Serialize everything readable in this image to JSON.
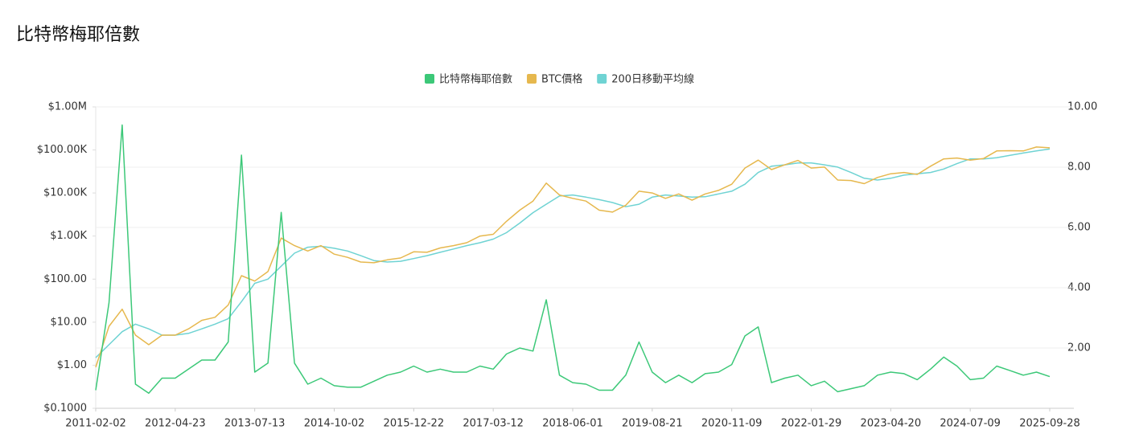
{
  "chart_data": {
    "type": "line",
    "title": "比特幣梅耶倍數",
    "categories": [
      "2011-02-02",
      null,
      null,
      null,
      null,
      null,
      "2012-04-23",
      null,
      null,
      null,
      null,
      null,
      "2013-07-13",
      null,
      null,
      null,
      null,
      null,
      "2014-10-02",
      null,
      null,
      null,
      null,
      null,
      "2015-12-22",
      null,
      null,
      null,
      null,
      null,
      "2017-03-12",
      null,
      null,
      null,
      null,
      null,
      "2018-06-01",
      null,
      null,
      null,
      null,
      null,
      "2019-08-21",
      null,
      null,
      null,
      null,
      null,
      "2020-11-09",
      null,
      null,
      null,
      null,
      null,
      "2022-01-29",
      null,
      null,
      null,
      null,
      null,
      "2023-04-20",
      null,
      null,
      null,
      null,
      null,
      "2024-07-09",
      null,
      null,
      null,
      null,
      null,
      "2025-09-28"
    ],
    "series": [
      {
        "name": "比特幣梅耶倍數",
        "color": "#3cc878",
        "axis": "y2",
        "values": [
          0.6,
          3.5,
          9.4,
          0.8,
          0.5,
          1.0,
          1.0,
          1.3,
          1.6,
          1.6,
          2.2,
          8.4,
          1.2,
          1.5,
          6.5,
          1.5,
          0.8,
          1.0,
          0.75,
          0.7,
          0.7,
          0.9,
          1.1,
          1.2,
          1.4,
          1.2,
          1.3,
          1.2,
          1.2,
          1.4,
          1.3,
          1.8,
          2.0,
          1.9,
          3.6,
          1.1,
          0.85,
          0.8,
          0.6,
          0.6,
          1.1,
          2.2,
          1.2,
          0.85,
          1.1,
          0.85,
          1.15,
          1.2,
          1.45,
          2.4,
          2.7,
          0.85,
          1.0,
          1.1,
          0.75,
          0.9,
          0.55,
          0.65,
          0.75,
          1.1,
          1.2,
          1.15,
          0.95,
          1.3,
          1.7,
          1.4,
          0.95,
          1.0,
          1.4,
          1.25,
          1.1,
          1.2,
          1.05
        ]
      },
      {
        "name": "BTC價格",
        "color": "#e6b84e",
        "values": [
          0.9,
          8,
          20,
          5,
          3,
          5,
          5,
          7,
          11,
          13,
          25,
          120,
          90,
          150,
          900,
          600,
          450,
          600,
          380,
          320,
          250,
          240,
          280,
          310,
          430,
          420,
          530,
          600,
          700,
          1000,
          1100,
          2200,
          4000,
          6500,
          17000,
          9000,
          7500,
          6500,
          4000,
          3600,
          5200,
          11000,
          10000,
          7500,
          9500,
          6800,
          9500,
          11500,
          16000,
          38000,
          58000,
          35000,
          45000,
          57000,
          38000,
          40000,
          20000,
          19500,
          16500,
          23000,
          28000,
          30000,
          27000,
          42000,
          62000,
          65000,
          58000,
          63000,
          95000,
          96000,
          95000,
          117000,
          112000
        ]
      },
      {
        "name": "200日移動平均線",
        "color": "#6fd3d3",
        "values": [
          1.5,
          3,
          6,
          9,
          7,
          5,
          5,
          5.5,
          7,
          9,
          12,
          30,
          80,
          100,
          200,
          400,
          550,
          580,
          520,
          450,
          350,
          270,
          250,
          260,
          300,
          350,
          420,
          500,
          600,
          700,
          850,
          1200,
          2000,
          3500,
          5500,
          8500,
          9000,
          8000,
          7000,
          6000,
          4800,
          5500,
          8000,
          9000,
          8500,
          8000,
          8200,
          9500,
          11000,
          16000,
          30000,
          42000,
          45000,
          50000,
          50000,
          45000,
          40000,
          30000,
          22000,
          20000,
          22000,
          26000,
          28000,
          30000,
          36000,
          48000,
          62000,
          62000,
          66000,
          75000,
          85000,
          95000,
          105000
        ]
      }
    ],
    "ylog": true,
    "ylim": [
      0.1,
      1000000
    ],
    "yticks": [
      {
        "value": 0.1,
        "label": "$0.1000"
      },
      {
        "value": 1,
        "label": "$1.00"
      },
      {
        "value": 10,
        "label": "$10.00"
      },
      {
        "value": 100,
        "label": "$100.00"
      },
      {
        "value": 1000,
        "label": "$1.00K"
      },
      {
        "value": 10000,
        "label": "$10.00K"
      },
      {
        "value": 100000,
        "label": "$100.00K"
      },
      {
        "value": 1000000,
        "label": "$1.00M"
      }
    ],
    "y2lim": [
      0,
      10
    ],
    "y2ticks": [
      {
        "value": 2,
        "label": "2.00"
      },
      {
        "value": 4,
        "label": "4.00"
      },
      {
        "value": 6,
        "label": "6.00"
      },
      {
        "value": 8,
        "label": "8.00"
      },
      {
        "value": 10,
        "label": "10.00"
      }
    ],
    "grid": true,
    "legend": "top"
  }
}
